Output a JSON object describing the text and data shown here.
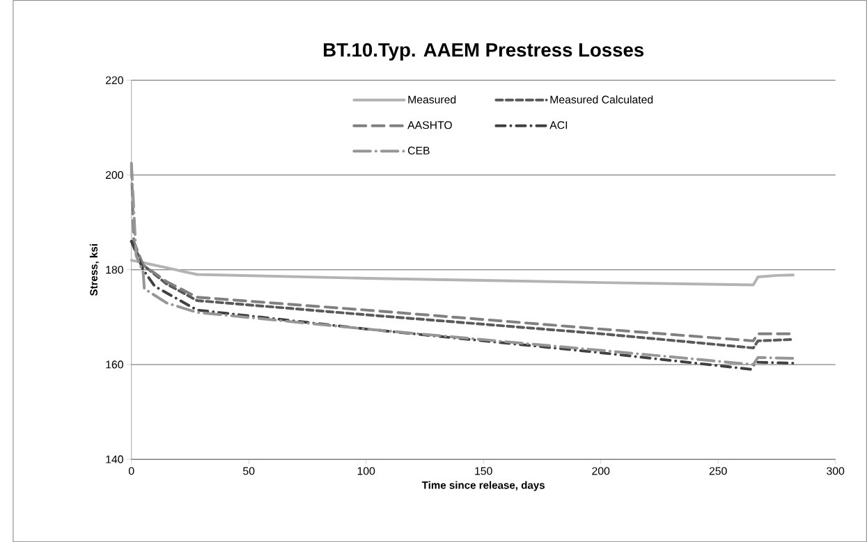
{
  "chart_data": {
    "type": "line",
    "title": "BT.10.Typ. AAEM Prestress Losses",
    "xlabel": "Time since release, days",
    "ylabel": "Stress, ksi",
    "xlim": [
      0,
      300
    ],
    "ylim": [
      140,
      220
    ],
    "xticks": [
      0,
      50,
      100,
      150,
      200,
      250,
      300
    ],
    "yticks": [
      140,
      160,
      180,
      200,
      220
    ],
    "grid": "y",
    "legend": "top right",
    "series": [
      {
        "name": "Measured",
        "color": "#b3b3b3",
        "line_style": "solid",
        "x": [
          0,
          5,
          28,
          100,
          200,
          265,
          267,
          275,
          282
        ],
        "values": [
          182,
          181.5,
          179,
          178.2,
          177.3,
          176.8,
          178.5,
          178.8,
          178.9
        ]
      },
      {
        "name": "Measured Calculated",
        "color": "#595959",
        "line_style": "dashed",
        "x": [
          0,
          5,
          15,
          28,
          100,
          200,
          265,
          267,
          282
        ],
        "values": [
          186,
          181,
          177,
          173.5,
          170.5,
          166.5,
          163.5,
          165,
          165.3
        ]
      },
      {
        "name": "AASHTO",
        "color": "#808080",
        "line_style": "longdashed",
        "x": [
          0,
          1,
          5,
          15,
          28,
          100,
          200,
          265,
          267,
          282
        ],
        "values": [
          202,
          186,
          181,
          177.5,
          174.2,
          171.5,
          167.5,
          165,
          166.5,
          166.5
        ]
      },
      {
        "name": "ACI",
        "color": "#404040",
        "line_style": "dashdot",
        "x": [
          0,
          5,
          10,
          28,
          100,
          200,
          264,
          266,
          282
        ],
        "values": [
          186,
          180,
          176.5,
          171.5,
          167.5,
          162.5,
          159,
          160.5,
          160.3
        ]
      },
      {
        "name": "CEB",
        "color": "#969696",
        "line_style": "longdashdot",
        "x": [
          0,
          2,
          5,
          5.5,
          15,
          28,
          100,
          200,
          265,
          267,
          282
        ],
        "values": [
          202.5,
          183,
          179.5,
          176,
          173,
          171,
          167.5,
          163,
          160,
          161.5,
          161.3
        ]
      }
    ]
  }
}
